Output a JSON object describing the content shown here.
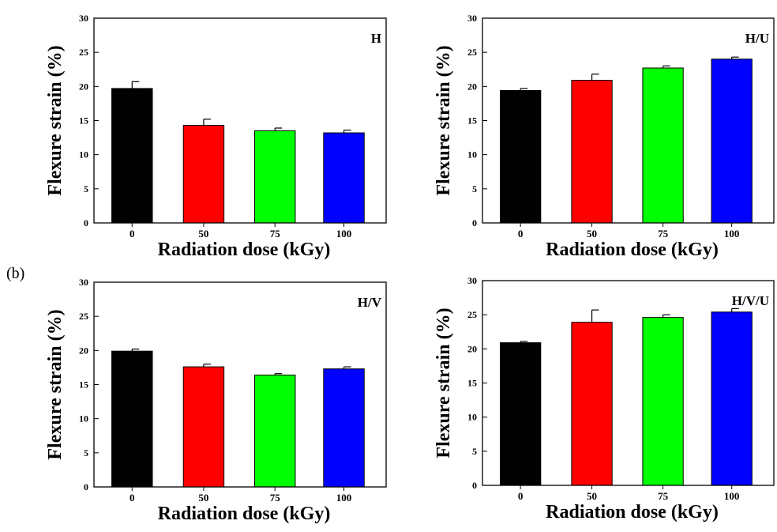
{
  "panel_label": "(b)",
  "colors": [
    "#000000",
    "#ff0000",
    "#00ff00",
    "#0000ff"
  ],
  "chart_data": [
    {
      "type": "bar",
      "annotation": "H",
      "categories": [
        "0",
        "50",
        "75",
        "100"
      ],
      "values": [
        19.7,
        14.3,
        13.5,
        13.2
      ],
      "errors": [
        1.0,
        0.9,
        0.4,
        0.4
      ],
      "ylabel": "Flexure strain (%)",
      "xlabel": "Radiation dose (kGy)",
      "yticks": [
        "0",
        "5",
        "10",
        "15",
        "20",
        "25",
        "30"
      ],
      "ylim": [
        0,
        30
      ]
    },
    {
      "type": "bar",
      "annotation": "H/U",
      "categories": [
        "0",
        "50",
        "75",
        "100"
      ],
      "values": [
        19.4,
        20.9,
        22.7,
        24.0
      ],
      "errors": [
        0.3,
        0.9,
        0.3,
        0.3
      ],
      "ylabel": "Flexure strain (%)",
      "xlabel": "Radiation dose (kGy)",
      "yticks": [
        "0",
        "5",
        "10",
        "15",
        "20",
        "25",
        "30"
      ],
      "ylim": [
        0,
        30
      ]
    },
    {
      "type": "bar",
      "annotation": "H/V",
      "categories": [
        "0",
        "50",
        "75",
        "100"
      ],
      "values": [
        19.9,
        17.6,
        16.4,
        17.3
      ],
      "errors": [
        0.3,
        0.4,
        0.2,
        0.3
      ],
      "ylabel": "Flexure strain (%)",
      "xlabel": "Radiation dose (kGy)",
      "yticks": [
        "0",
        "5",
        "10",
        "15",
        "20",
        "25",
        "30"
      ],
      "ylim": [
        0,
        30
      ]
    },
    {
      "type": "bar",
      "annotation": "H/V/U",
      "categories": [
        "0",
        "50",
        "75",
        "100"
      ],
      "values": [
        20.9,
        23.9,
        24.6,
        25.4
      ],
      "errors": [
        0.2,
        1.8,
        0.4,
        0.5
      ],
      "ylabel": "Flexure strain (%)",
      "xlabel": "Radiation dose (kGy)",
      "yticks": [
        "0",
        "5",
        "10",
        "15",
        "20",
        "25",
        "30"
      ],
      "ylim": [
        0,
        30
      ]
    }
  ]
}
